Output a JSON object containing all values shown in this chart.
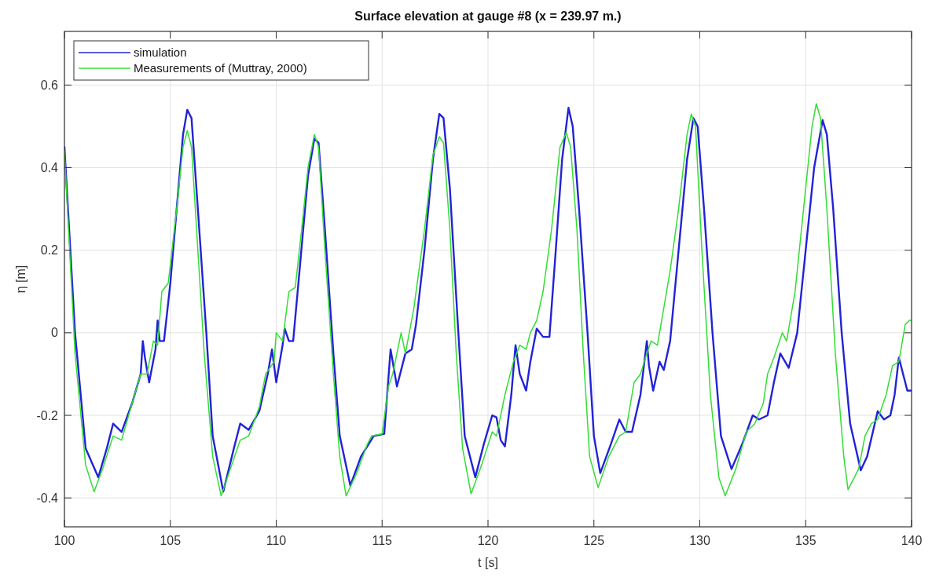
{
  "chart_data": {
    "type": "line",
    "title": "Surface elevation at gauge #8 (x = 239.97 m.)",
    "xlabel": "t [s]",
    "ylabel": "η [m]",
    "xlim": [
      100,
      140
    ],
    "xticks": [
      100,
      105,
      110,
      115,
      120,
      125,
      130,
      135,
      140
    ],
    "ylim": [
      -0.47,
      0.73
    ],
    "yticks": [
      -0.4,
      -0.2,
      0,
      0.2,
      0.4,
      0.6
    ],
    "grid": true,
    "legend": "top left",
    "line_style": "solid",
    "series": [
      {
        "name": "simulation",
        "color": "#2222d8",
        "x": [
          100,
          100.5,
          101,
          101.6,
          102,
          102.3,
          102.7,
          103.2,
          103.6,
          103.7,
          103.8,
          104.0,
          104.3,
          104.4,
          104.5,
          104.7,
          105,
          105.3,
          105.6,
          105.8,
          106.0,
          106.3,
          106.7,
          107.0,
          107.5,
          108,
          108.3,
          108.7,
          109.2,
          109.6,
          109.8,
          110.0,
          110.3,
          110.4,
          110.6,
          110.8,
          111.1,
          111.5,
          111.8,
          112.0,
          112.3,
          112.7,
          113.0,
          113.5,
          114,
          114.6,
          115.1,
          115.4,
          115.7,
          116.1,
          116.4,
          116.6,
          117.0,
          117.4,
          117.7,
          117.9,
          118.2,
          118.6,
          118.9,
          119.4,
          119.8,
          120.2,
          120.4,
          120.6,
          120.8,
          121.1,
          121.3,
          121.5,
          121.8,
          122.0,
          122.3,
          122.6,
          122.9,
          123.2,
          123.5,
          123.8,
          124.0,
          124.3,
          124.7,
          125.0,
          125.3,
          125.8,
          126.2,
          126.5,
          126.8,
          127.2,
          127.5,
          127.6,
          127.8,
          128.1,
          128.3,
          128.6,
          129.0,
          129.4,
          129.7,
          129.9,
          130.2,
          130.6,
          131.0,
          131.5,
          132.0,
          132.5,
          132.8,
          133.2,
          133.5,
          133.8,
          134.2,
          134.6,
          135.0,
          135.4,
          135.8,
          136.0,
          136.3,
          136.7,
          137.1,
          137.6,
          137.9,
          138.4,
          138.7,
          139.0,
          139.2,
          139.4,
          139.6,
          139.8,
          140
        ],
        "values": [
          0.45,
          0.0,
          -0.28,
          -0.35,
          -0.28,
          -0.22,
          -0.24,
          -0.17,
          -0.1,
          -0.02,
          -0.06,
          -0.12,
          -0.04,
          0.03,
          -0.02,
          -0.02,
          0.12,
          0.3,
          0.48,
          0.54,
          0.52,
          0.3,
          0.0,
          -0.25,
          -0.385,
          -0.28,
          -0.22,
          -0.235,
          -0.19,
          -0.1,
          -0.04,
          -0.12,
          -0.03,
          0.01,
          -0.02,
          -0.02,
          0.15,
          0.38,
          0.47,
          0.46,
          0.25,
          -0.05,
          -0.25,
          -0.37,
          -0.3,
          -0.25,
          -0.245,
          -0.04,
          -0.13,
          -0.05,
          -0.04,
          0.02,
          0.2,
          0.42,
          0.53,
          0.52,
          0.35,
          0.0,
          -0.25,
          -0.35,
          -0.27,
          -0.2,
          -0.205,
          -0.26,
          -0.275,
          -0.15,
          -0.03,
          -0.1,
          -0.14,
          -0.07,
          0.01,
          -0.01,
          -0.01,
          0.2,
          0.42,
          0.545,
          0.5,
          0.3,
          0.0,
          -0.25,
          -0.34,
          -0.27,
          -0.21,
          -0.24,
          -0.24,
          -0.15,
          -0.02,
          -0.08,
          -0.14,
          -0.07,
          -0.09,
          -0.02,
          0.2,
          0.42,
          0.52,
          0.5,
          0.3,
          0.0,
          -0.25,
          -0.33,
          -0.27,
          -0.2,
          -0.21,
          -0.2,
          -0.12,
          -0.05,
          -0.085,
          0.0,
          0.2,
          0.4,
          0.515,
          0.48,
          0.3,
          0.0,
          -0.22,
          -0.333,
          -0.3,
          -0.19,
          -0.21,
          -0.2,
          -0.15,
          -0.06,
          -0.1,
          -0.14,
          -0.14
        ]
      },
      {
        "name": "Measurements of (Muttray, 2000)",
        "color": "#33dd33",
        "x": [
          100,
          100.5,
          101,
          101.4,
          101.8,
          102.3,
          102.7,
          103.2,
          103.6,
          103.9,
          104.2,
          104.4,
          104.6,
          104.9,
          105.3,
          105.6,
          105.8,
          106.0,
          106.3,
          106.6,
          107.0,
          107.4,
          107.9,
          108.3,
          108.7,
          109.2,
          109.5,
          109.9,
          110.0,
          110.3,
          110.6,
          110.9,
          111.2,
          111.5,
          111.8,
          112.0,
          112.3,
          112.7,
          113.0,
          113.3,
          113.8,
          114.3,
          114.5,
          115.0,
          115.3,
          115.5,
          115.9,
          116.1,
          116.5,
          117.0,
          117.4,
          117.7,
          117.9,
          118.2,
          118.5,
          118.8,
          119.2,
          119.7,
          120.2,
          120.4,
          120.8,
          121.2,
          121.5,
          121.8,
          122.0,
          122.3,
          122.6,
          123.0,
          123.4,
          123.7,
          123.9,
          124.2,
          124.5,
          124.8,
          125.2,
          125.7,
          126.2,
          126.5,
          126.9,
          127.2,
          127.5,
          127.7,
          128.0,
          128.3,
          128.6,
          129.0,
          129.4,
          129.6,
          129.8,
          130.1,
          130.5,
          130.9,
          131.2,
          131.7,
          132.2,
          132.6,
          133.0,
          133.2,
          133.5,
          133.9,
          134.1,
          134.5,
          134.9,
          135.3,
          135.5,
          135.7,
          136.0,
          136.4,
          136.8,
          137.0,
          137.5,
          137.8,
          138.1,
          138.4,
          138.8,
          139.1,
          139.4,
          139.7,
          139.9,
          140
        ],
        "values": [
          0.44,
          -0.05,
          -0.32,
          -0.385,
          -0.33,
          -0.25,
          -0.26,
          -0.17,
          -0.1,
          -0.1,
          -0.02,
          -0.03,
          0.1,
          0.12,
          0.3,
          0.45,
          0.49,
          0.45,
          0.2,
          -0.05,
          -0.3,
          -0.395,
          -0.32,
          -0.26,
          -0.25,
          -0.18,
          -0.1,
          -0.07,
          0.0,
          -0.02,
          0.1,
          0.11,
          0.25,
          0.4,
          0.48,
          0.45,
          0.2,
          -0.1,
          -0.3,
          -0.395,
          -0.34,
          -0.27,
          -0.25,
          -0.245,
          -0.13,
          -0.1,
          0.0,
          -0.05,
          0.06,
          0.25,
          0.43,
          0.475,
          0.46,
          0.25,
          -0.05,
          -0.28,
          -0.39,
          -0.32,
          -0.24,
          -0.25,
          -0.15,
          -0.07,
          -0.03,
          -0.04,
          0.0,
          0.03,
          0.1,
          0.25,
          0.45,
          0.485,
          0.45,
          0.25,
          -0.05,
          -0.3,
          -0.375,
          -0.3,
          -0.25,
          -0.24,
          -0.12,
          -0.1,
          -0.05,
          -0.02,
          -0.03,
          0.06,
          0.15,
          0.3,
          0.48,
          0.53,
          0.5,
          0.2,
          -0.15,
          -0.35,
          -0.395,
          -0.33,
          -0.24,
          -0.22,
          -0.17,
          -0.1,
          -0.06,
          0.0,
          -0.02,
          0.1,
          0.3,
          0.5,
          0.555,
          0.52,
          0.3,
          -0.05,
          -0.3,
          -0.38,
          -0.33,
          -0.25,
          -0.22,
          -0.21,
          -0.15,
          -0.08,
          -0.07,
          0.02,
          0.03,
          0.03
        ]
      }
    ]
  }
}
